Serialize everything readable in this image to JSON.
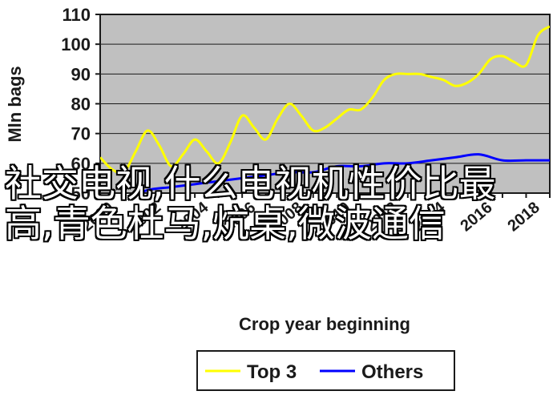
{
  "overlay": {
    "line1": "社交电视,什么电视机性价比最",
    "line2": "高,青色杜马,炕桌,微波通信"
  },
  "chart_data": {
    "type": "line",
    "title": "",
    "xlabel": "Crop year beginning",
    "ylabel": "Mln bags",
    "ylim": [
      50,
      110
    ],
    "yticks": [
      50,
      60,
      70,
      80,
      90,
      100,
      110
    ],
    "xlim": [
      2000,
      2019
    ],
    "xticks": [
      "2000",
      "2002",
      "2004",
      "2006",
      "2008",
      "2010",
      "2012",
      "2014",
      "2016",
      "2018"
    ],
    "grid": "horizontal",
    "background": "#c0c0c0",
    "legend_position": "bottom",
    "series": [
      {
        "name": "Top 3",
        "color": "#ffff00",
        "x": [
          2000,
          2000.5,
          2001,
          2001.5,
          2002,
          2002.5,
          2003,
          2003.5,
          2004,
          2004.5,
          2005,
          2005.5,
          2006,
          2006.5,
          2007,
          2007.5,
          2008,
          2008.5,
          2009,
          2009.5,
          2010,
          2010.5,
          2011,
          2011.5,
          2012,
          2012.5,
          2013,
          2013.5,
          2014,
          2014.5,
          2015,
          2015.5,
          2016,
          2016.5,
          2017,
          2017.5,
          2018,
          2018.5,
          2019
        ],
        "values": [
          62,
          58,
          57,
          64,
          71,
          66,
          59,
          63,
          68,
          64,
          60,
          67,
          76,
          72,
          68,
          75,
          80,
          76,
          71,
          72,
          75,
          78,
          78,
          82,
          88,
          90,
          90,
          90,
          89,
          88,
          86,
          87,
          90,
          95,
          96,
          94,
          93,
          103,
          106
        ]
      },
      {
        "name": "Others",
        "color": "#0000ff",
        "x": [
          2000,
          2001,
          2002,
          2003,
          2004,
          2005,
          2006,
          2007,
          2008,
          2009,
          2010,
          2011,
          2012,
          2013,
          2014,
          2015,
          2016,
          2017,
          2018,
          2019
        ],
        "values": [
          49,
          48,
          51,
          52,
          53,
          54,
          55,
          56,
          57,
          57,
          59,
          59,
          60,
          60,
          61,
          62,
          63,
          61,
          61,
          61
        ]
      }
    ]
  }
}
